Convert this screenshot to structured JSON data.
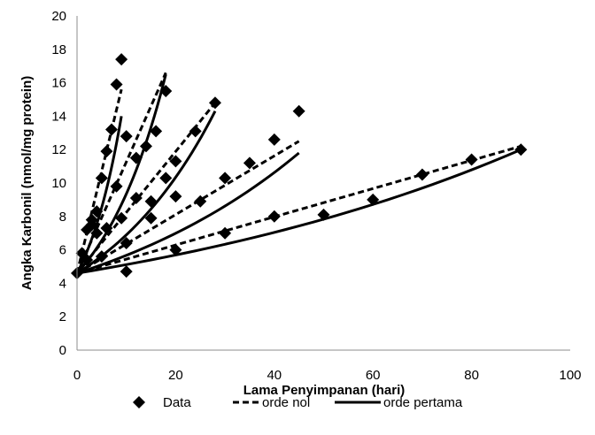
{
  "chart_data": {
    "type": "scatter",
    "title": "",
    "xlabel": "Lama Penyimpanan (hari)",
    "ylabel": "Angka Karbonil (nmol/mg protein)",
    "xlim": [
      0,
      100
    ],
    "ylim": [
      0,
      20
    ],
    "xticks": [
      0,
      20,
      40,
      60,
      80,
      100
    ],
    "yticks": [
      0,
      2,
      4,
      6,
      8,
      10,
      12,
      14,
      16,
      18,
      20
    ],
    "grid": false,
    "legend_position": "bottom",
    "legend": [
      {
        "label": "Data",
        "style": "diamond-marker"
      },
      {
        "label": "orde nol",
        "style": "dashed-line"
      },
      {
        "label": "orde pertama",
        "style": "solid-line"
      }
    ],
    "data_points": [
      [
        0,
        4.6
      ],
      [
        1,
        5.8
      ],
      [
        2,
        7.2
      ],
      [
        3,
        7.8
      ],
      [
        4,
        8.3
      ],
      [
        5,
        10.3
      ],
      [
        6,
        11.9
      ],
      [
        7,
        13.2
      ],
      [
        8,
        15.9
      ],
      [
        9,
        17.4
      ],
      [
        2,
        5.4
      ],
      [
        3,
        7.5
      ],
      [
        4,
        7.0
      ],
      [
        6,
        7.3
      ],
      [
        8,
        9.8
      ],
      [
        10,
        12.8
      ],
      [
        12,
        11.5
      ],
      [
        14,
        12.2
      ],
      [
        16,
        13.1
      ],
      [
        18,
        15.5
      ],
      [
        5,
        5.6
      ],
      [
        9,
        7.9
      ],
      [
        12,
        9.1
      ],
      [
        15,
        8.9
      ],
      [
        18,
        10.3
      ],
      [
        20,
        11.3
      ],
      [
        24,
        13.1
      ],
      [
        28,
        14.8
      ],
      [
        10,
        4.7
      ],
      [
        10,
        6.4
      ],
      [
        15,
        7.9
      ],
      [
        20,
        9.2
      ],
      [
        25,
        8.9
      ],
      [
        30,
        10.3
      ],
      [
        35,
        11.2
      ],
      [
        40,
        12.6
      ],
      [
        45,
        14.3
      ],
      [
        20,
        6.0
      ],
      [
        30,
        7.0
      ],
      [
        40,
        8.0
      ],
      [
        50,
        8.1
      ],
      [
        60,
        9.0
      ],
      [
        70,
        10.5
      ],
      [
        80,
        11.4
      ],
      [
        90,
        12.0
      ]
    ],
    "zero_order_fits": [
      {
        "x": [
          0,
          9
        ],
        "y": [
          4.6,
          15.6
        ]
      },
      {
        "x": [
          0,
          18
        ],
        "y": [
          4.6,
          16.6
        ]
      },
      {
        "x": [
          0,
          28
        ],
        "y": [
          4.6,
          14.8
        ]
      },
      {
        "x": [
          0,
          45
        ],
        "y": [
          4.6,
          12.5
        ]
      },
      {
        "x": [
          0,
          90
        ],
        "y": [
          4.6,
          12.2
        ]
      }
    ],
    "first_order_fits": [
      {
        "x": [
          0,
          9
        ],
        "y": [
          4.6,
          14.0
        ]
      },
      {
        "x": [
          0,
          18
        ],
        "y": [
          4.6,
          16.5
        ]
      },
      {
        "x": [
          0,
          28
        ],
        "y": [
          4.6,
          14.3
        ]
      },
      {
        "x": [
          0,
          45
        ],
        "y": [
          4.6,
          11.8
        ]
      },
      {
        "x": [
          0,
          90
        ],
        "y": [
          4.6,
          12.0
        ]
      }
    ]
  }
}
